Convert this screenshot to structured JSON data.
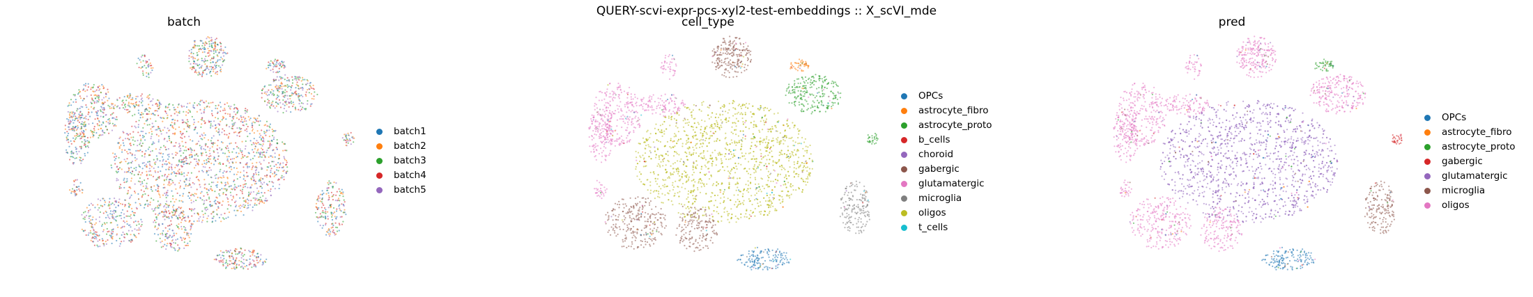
{
  "title": "QUERY-scvi-expr-pcs-xyl2-test-embeddings :: X_scVI_mde",
  "chart_data": [
    {
      "type": "scatter",
      "title": "batch",
      "legend_position": "right",
      "grid": false,
      "series": [
        {
          "name": "batch1",
          "color": "#1f77b4"
        },
        {
          "name": "batch2",
          "color": "#ff7f0e"
        },
        {
          "name": "batch3",
          "color": "#2ca02c"
        },
        {
          "name": "batch4",
          "color": "#d62728"
        },
        {
          "name": "batch5",
          "color": "#9467bd"
        }
      ]
    },
    {
      "type": "scatter",
      "title": "cell_type",
      "legend_position": "right",
      "grid": false,
      "series": [
        {
          "name": "OPCs",
          "color": "#1f77b4"
        },
        {
          "name": "astrocyte_fibro",
          "color": "#ff7f0e"
        },
        {
          "name": "astrocyte_proto",
          "color": "#2ca02c"
        },
        {
          "name": "b_cells",
          "color": "#d62728"
        },
        {
          "name": "choroid",
          "color": "#9467bd"
        },
        {
          "name": "gabergic",
          "color": "#8c564b"
        },
        {
          "name": "glutamatergic",
          "color": "#e377c2"
        },
        {
          "name": "microglia",
          "color": "#7f7f7f"
        },
        {
          "name": "oligos",
          "color": "#bcbd22"
        },
        {
          "name": "t_cells",
          "color": "#17becf"
        }
      ]
    },
    {
      "type": "scatter",
      "title": "pred",
      "legend_position": "right",
      "grid": false,
      "series": [
        {
          "name": "OPCs",
          "color": "#1f77b4"
        },
        {
          "name": "astrocyte_fibro",
          "color": "#ff7f0e"
        },
        {
          "name": "astrocyte_proto",
          "color": "#2ca02c"
        },
        {
          "name": "gabergic",
          "color": "#d62728"
        },
        {
          "name": "glutamatergic",
          "color": "#9467bd"
        },
        {
          "name": "microglia",
          "color": "#8c564b"
        },
        {
          "name": "oligos",
          "color": "#e377c2"
        }
      ]
    }
  ]
}
